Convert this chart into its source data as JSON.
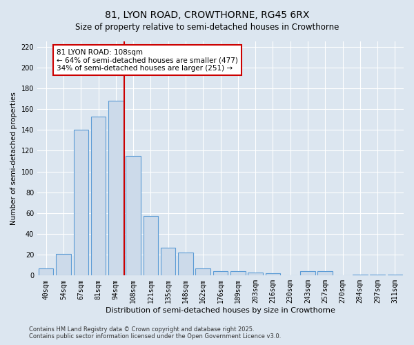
{
  "title": "81, LYON ROAD, CROWTHORNE, RG45 6RX",
  "subtitle": "Size of property relative to semi-detached houses in Crowthorne",
  "xlabel": "Distribution of semi-detached houses by size in Crowthorne",
  "ylabel": "Number of semi-detached properties",
  "categories": [
    "40sqm",
    "54sqm",
    "67sqm",
    "81sqm",
    "94sqm",
    "108sqm",
    "121sqm",
    "135sqm",
    "148sqm",
    "162sqm",
    "176sqm",
    "189sqm",
    "203sqm",
    "216sqm",
    "230sqm",
    "243sqm",
    "257sqm",
    "270sqm",
    "284sqm",
    "297sqm",
    "311sqm"
  ],
  "values": [
    7,
    21,
    140,
    153,
    168,
    115,
    57,
    27,
    22,
    7,
    4,
    4,
    3,
    2,
    0,
    4,
    4,
    0,
    1,
    1,
    1
  ],
  "bar_color": "#ccdaea",
  "bar_edge_color": "#5b9bd5",
  "highlight_index": 5,
  "annotation_text": "81 LYON ROAD: 108sqm\n← 64% of semi-detached houses are smaller (477)\n34% of semi-detached houses are larger (251) →",
  "annotation_box_color": "#ffffff",
  "annotation_box_edge_color": "#cc0000",
  "vertical_line_color": "#cc0000",
  "background_color": "#dce6f0",
  "plot_bg_color": "#dce6f0",
  "ylim": [
    0,
    225
  ],
  "yticks": [
    0,
    20,
    40,
    60,
    80,
    100,
    120,
    140,
    160,
    180,
    200,
    220
  ],
  "footer_line1": "Contains HM Land Registry data © Crown copyright and database right 2025.",
  "footer_line2": "Contains public sector information licensed under the Open Government Licence v3.0.",
  "title_fontsize": 10,
  "tick_fontsize": 7,
  "xlabel_fontsize": 8,
  "ylabel_fontsize": 7.5,
  "annotation_fontsize": 7.5,
  "footer_fontsize": 6
}
